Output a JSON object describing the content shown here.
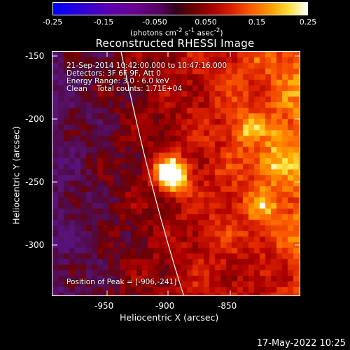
{
  "colorbar": {
    "ticks": [
      "-0.25",
      "-0.15",
      "-0.050",
      "0.050",
      "0.15",
      "0.25"
    ],
    "range": [
      -0.25,
      0.25
    ],
    "units_html": "(photons cm<sup>-2</sup> s<sup>-1</sup> asec<sup>-2</sup>)"
  },
  "title": "Reconstructed RHESSI Image",
  "info": {
    "line1": "21-Sep-2014 10:42:00.000 to 10:47:16.000",
    "line2": "Detectors: 3F 6F 9F, Att 0",
    "line3": "Energy Range: 3.0 - 6.0 keV",
    "line4": "Clean    Total counts: 1.71E+04"
  },
  "peak_label": "Position of Peak = [-906,-241]",
  "axes": {
    "xlabel": "Heliocentric X (arcsec)",
    "ylabel": "Heliocentric Y (arcsec)",
    "xticks": [
      "-950",
      "-900",
      "-850"
    ],
    "yticks": [
      "-150",
      "-200",
      "-250",
      "-300"
    ],
    "xrange": [
      -994,
      -797
    ],
    "yrange": [
      -340,
      -145
    ]
  },
  "peak": {
    "x": -906,
    "y": -241
  },
  "footer_date": "17-May-2022 10:25"
}
